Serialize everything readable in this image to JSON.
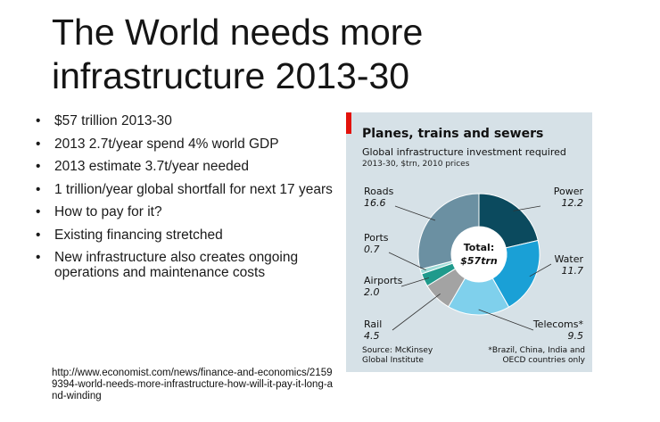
{
  "slide": {
    "title": "The World needs more infrastructure 2013-30",
    "bullets": [
      "$57 trillion 2013-30",
      "2013 2.7t/year spend 4% world GDP",
      "2013 estimate 3.7t/year needed",
      "1 trillion/year global shortfall for next 17 years",
      "How to pay for it?",
      "Existing financing stretched",
      "New infrastructure also creates ongoing operations and maintenance costs"
    ],
    "bullet_glyph": "•",
    "source_url": "http://www.economist.com/news/finance-and-economics/21599394-world-needs-more-infrastructure-how-will-it-pay-it-long-and-winding"
  },
  "chart_data": {
    "type": "pie",
    "variant": "donut",
    "title": "Planes, trains and sewers",
    "subtitle": "Global infrastructure investment required",
    "note": "2013-30, $trn, 2010 prices",
    "center_label_line1": "Total:",
    "center_label_line2": "$57trn",
    "categories": [
      "Power",
      "Water",
      "Telecoms*",
      "Rail",
      "Airports",
      "Ports",
      "Roads"
    ],
    "values": [
      12.2,
      11.7,
      9.5,
      4.5,
      2.0,
      0.7,
      16.6
    ],
    "value_labels": [
      "12.2",
      "11.7",
      "9.5",
      "4.5",
      "2.0",
      "0.7",
      "16.6"
    ],
    "colors": [
      "#0b4a5e",
      "#1aa0d6",
      "#7fd0ec",
      "#a3a3a3",
      "#1f9a8c",
      "#9fdcd8",
      "#6b90a2"
    ],
    "source": "Source: McKinsey Global Institute",
    "footnote": "*Brazil, China, India and OECD countries only"
  }
}
